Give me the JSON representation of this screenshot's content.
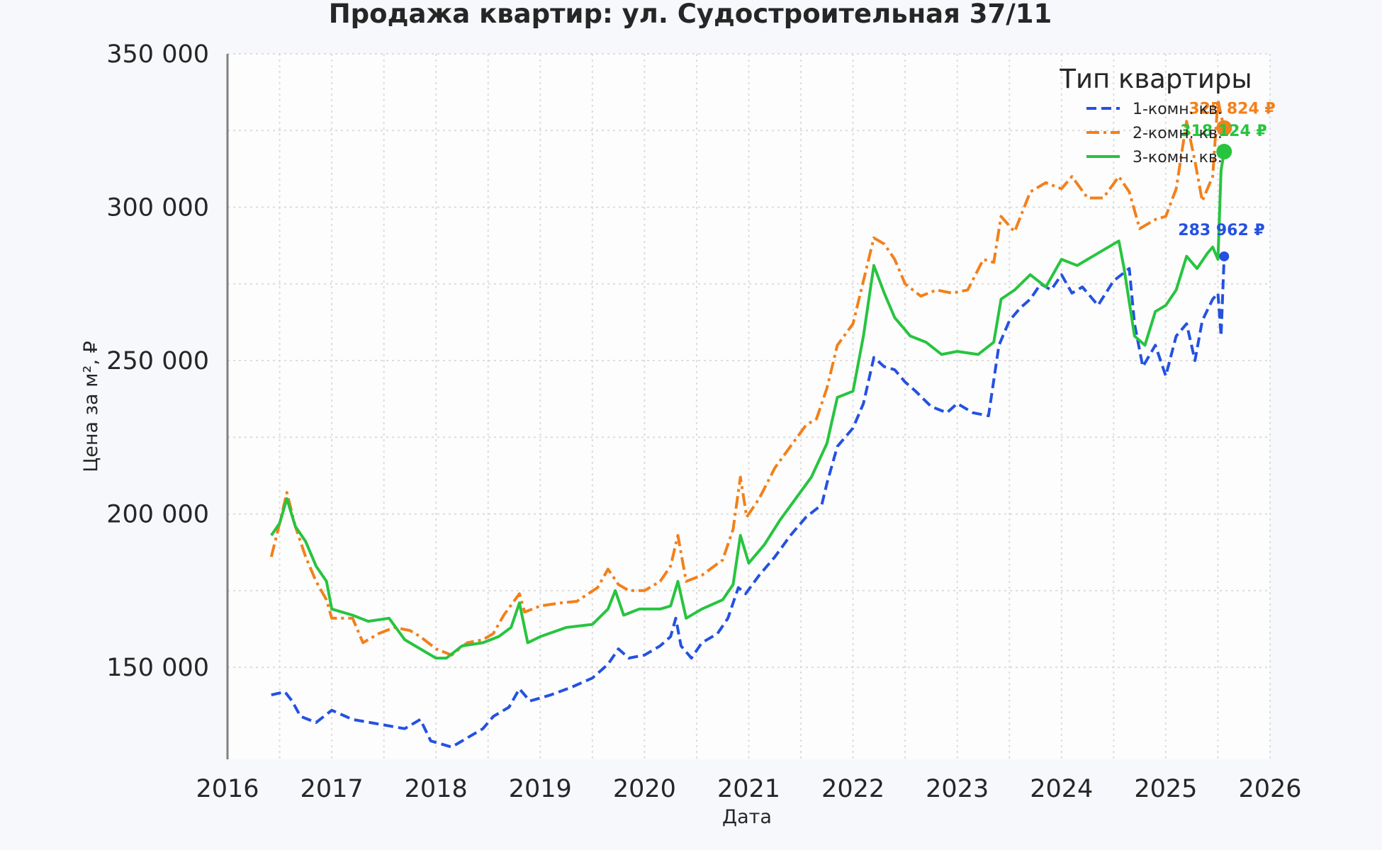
{
  "chart_data": {
    "type": "line",
    "title": "Продажа квартир: ул. Судостроительная 37/11",
    "xlabel": "Дата",
    "ylabel": "Цена за м², ₽",
    "xlim": [
      2016.0,
      2026.0
    ],
    "ylim": [
      120000,
      350000
    ],
    "x_ticks": [
      2016,
      2017,
      2018,
      2019,
      2020,
      2021,
      2022,
      2023,
      2024,
      2025,
      2026
    ],
    "y_ticks": [
      150000,
      200000,
      250000,
      300000,
      350000
    ],
    "x_tick_labels": [
      "2016",
      "2017",
      "2018",
      "2019",
      "2020",
      "2021",
      "2022",
      "2023",
      "2024",
      "2025",
      "2026"
    ],
    "y_tick_labels": [
      "150 000",
      "200 000",
      "250 000",
      "300 000",
      "350 000"
    ],
    "grid": true,
    "legend": {
      "title": "Тип квартиры",
      "position": "top-right"
    },
    "series": [
      {
        "name": "1-комн. кв.",
        "color": "#2451e0",
        "dash": "dashed",
        "end_label": "283 962 ₽",
        "end_value": 283962,
        "points": [
          [
            2016.42,
            141000
          ],
          [
            2016.55,
            142000
          ],
          [
            2016.62,
            139000
          ],
          [
            2016.7,
            134000
          ],
          [
            2016.85,
            132000
          ],
          [
            2017.0,
            136000
          ],
          [
            2017.2,
            133000
          ],
          [
            2017.45,
            131500
          ],
          [
            2017.7,
            130000
          ],
          [
            2017.85,
            133000
          ],
          [
            2017.95,
            126000
          ],
          [
            2018.05,
            125000
          ],
          [
            2018.15,
            124000
          ],
          [
            2018.3,
            127000
          ],
          [
            2018.45,
            130000
          ],
          [
            2018.55,
            134000
          ],
          [
            2018.7,
            137000
          ],
          [
            2018.8,
            143000
          ],
          [
            2018.9,
            139000
          ],
          [
            2019.1,
            141000
          ],
          [
            2019.3,
            143500
          ],
          [
            2019.5,
            146500
          ],
          [
            2019.65,
            151000
          ],
          [
            2019.75,
            156000
          ],
          [
            2019.85,
            153000
          ],
          [
            2020.0,
            154000
          ],
          [
            2020.15,
            157000
          ],
          [
            2020.25,
            160000
          ],
          [
            2020.3,
            166000
          ],
          [
            2020.35,
            157000
          ],
          [
            2020.45,
            153000
          ],
          [
            2020.55,
            158000
          ],
          [
            2020.7,
            161000
          ],
          [
            2020.8,
            166000
          ],
          [
            2020.9,
            176000
          ],
          [
            2020.97,
            174000
          ],
          [
            2021.1,
            180000
          ],
          [
            2021.25,
            186000
          ],
          [
            2021.4,
            193000
          ],
          [
            2021.55,
            199000
          ],
          [
            2021.7,
            203000
          ],
          [
            2021.75,
            210000
          ],
          [
            2021.85,
            222000
          ],
          [
            2022.0,
            228000
          ],
          [
            2022.1,
            236000
          ],
          [
            2022.2,
            251000
          ],
          [
            2022.3,
            248000
          ],
          [
            2022.4,
            247000
          ],
          [
            2022.5,
            243000
          ],
          [
            2022.6,
            240000
          ],
          [
            2022.75,
            235000
          ],
          [
            2022.9,
            233000
          ],
          [
            2023.0,
            236000
          ],
          [
            2023.15,
            233000
          ],
          [
            2023.3,
            232000
          ],
          [
            2023.4,
            255000
          ],
          [
            2023.5,
            263000
          ],
          [
            2023.6,
            267000
          ],
          [
            2023.7,
            270000
          ],
          [
            2023.8,
            275000
          ],
          [
            2023.9,
            273000
          ],
          [
            2024.0,
            278000
          ],
          [
            2024.1,
            272000
          ],
          [
            2024.2,
            274000
          ],
          [
            2024.35,
            268000
          ],
          [
            2024.5,
            276000
          ],
          [
            2024.65,
            280000
          ],
          [
            2024.7,
            262000
          ],
          [
            2024.78,
            248000
          ],
          [
            2024.9,
            255000
          ],
          [
            2025.0,
            245000
          ],
          [
            2025.1,
            258000
          ],
          [
            2025.2,
            262000
          ],
          [
            2025.28,
            250000
          ],
          [
            2025.35,
            263000
          ],
          [
            2025.45,
            270000
          ],
          [
            2025.5,
            272000
          ],
          [
            2025.53,
            258000
          ],
          [
            2025.56,
            283962
          ]
        ]
      },
      {
        "name": "2-комн. кв.",
        "color": "#f3801a",
        "dash": "dashdot",
        "end_label": "325 824 ₽",
        "end_value": 325824,
        "points": [
          [
            2016.42,
            186000
          ],
          [
            2016.5,
            197000
          ],
          [
            2016.57,
            207000
          ],
          [
            2016.65,
            196000
          ],
          [
            2016.75,
            186000
          ],
          [
            2016.85,
            178000
          ],
          [
            2016.95,
            172000
          ],
          [
            2017.0,
            166000
          ],
          [
            2017.2,
            166000
          ],
          [
            2017.3,
            158000
          ],
          [
            2017.45,
            161000
          ],
          [
            2017.6,
            163000
          ],
          [
            2017.75,
            162000
          ],
          [
            2017.85,
            160000
          ],
          [
            2018.0,
            156000
          ],
          [
            2018.15,
            154000
          ],
          [
            2018.3,
            158000
          ],
          [
            2018.45,
            159000
          ],
          [
            2018.55,
            161000
          ],
          [
            2018.65,
            167000
          ],
          [
            2018.8,
            174000
          ],
          [
            2018.85,
            168000
          ],
          [
            2019.0,
            170000
          ],
          [
            2019.2,
            171000
          ],
          [
            2019.35,
            171500
          ],
          [
            2019.55,
            176000
          ],
          [
            2019.65,
            182000
          ],
          [
            2019.75,
            177000
          ],
          [
            2019.85,
            175000
          ],
          [
            2020.0,
            175000
          ],
          [
            2020.15,
            178000
          ],
          [
            2020.25,
            183000
          ],
          [
            2020.32,
            193000
          ],
          [
            2020.4,
            178000
          ],
          [
            2020.55,
            180000
          ],
          [
            2020.75,
            185000
          ],
          [
            2020.85,
            195000
          ],
          [
            2020.92,
            212000
          ],
          [
            2020.98,
            199000
          ],
          [
            2021.1,
            205000
          ],
          [
            2021.25,
            215000
          ],
          [
            2021.4,
            222000
          ],
          [
            2021.55,
            229000
          ],
          [
            2021.65,
            231000
          ],
          [
            2021.75,
            241000
          ],
          [
            2021.85,
            255000
          ],
          [
            2022.0,
            262000
          ],
          [
            2022.1,
            276000
          ],
          [
            2022.2,
            290000
          ],
          [
            2022.3,
            288000
          ],
          [
            2022.4,
            283000
          ],
          [
            2022.5,
            275000
          ],
          [
            2022.65,
            271000
          ],
          [
            2022.8,
            273000
          ],
          [
            2022.95,
            272000
          ],
          [
            2023.1,
            273000
          ],
          [
            2023.25,
            283000
          ],
          [
            2023.35,
            282000
          ],
          [
            2023.42,
            297000
          ],
          [
            2023.55,
            292000
          ],
          [
            2023.7,
            305000
          ],
          [
            2023.85,
            308000
          ],
          [
            2024.0,
            306000
          ],
          [
            2024.1,
            310000
          ],
          [
            2024.25,
            303000
          ],
          [
            2024.4,
            303000
          ],
          [
            2024.55,
            310000
          ],
          [
            2024.65,
            305000
          ],
          [
            2024.75,
            293000
          ],
          [
            2024.9,
            296000
          ],
          [
            2025.0,
            297000
          ],
          [
            2025.1,
            306000
          ],
          [
            2025.2,
            328000
          ],
          [
            2025.28,
            315000
          ],
          [
            2025.35,
            302000
          ],
          [
            2025.45,
            310000
          ],
          [
            2025.5,
            335000
          ],
          [
            2025.53,
            330000
          ],
          [
            2025.56,
            325824
          ]
        ]
      },
      {
        "name": "3-комн. кв.",
        "color": "#27c43f",
        "dash": "solid",
        "end_label": "318 124 ₽",
        "end_value": 318124,
        "points": [
          [
            2016.42,
            193000
          ],
          [
            2016.5,
            197000
          ],
          [
            2016.57,
            205000
          ],
          [
            2016.65,
            196000
          ],
          [
            2016.75,
            191000
          ],
          [
            2016.85,
            183000
          ],
          [
            2016.95,
            178000
          ],
          [
            2017.0,
            169000
          ],
          [
            2017.2,
            167000
          ],
          [
            2017.35,
            165000
          ],
          [
            2017.55,
            166000
          ],
          [
            2017.7,
            159000
          ],
          [
            2017.85,
            156000
          ],
          [
            2018.0,
            153000
          ],
          [
            2018.1,
            153000
          ],
          [
            2018.25,
            157000
          ],
          [
            2018.45,
            158000
          ],
          [
            2018.6,
            160000
          ],
          [
            2018.72,
            163000
          ],
          [
            2018.8,
            171000
          ],
          [
            2018.88,
            158000
          ],
          [
            2019.0,
            160000
          ],
          [
            2019.25,
            163000
          ],
          [
            2019.5,
            164000
          ],
          [
            2019.65,
            169000
          ],
          [
            2019.72,
            175000
          ],
          [
            2019.8,
            167000
          ],
          [
            2019.95,
            169000
          ],
          [
            2020.15,
            169000
          ],
          [
            2020.25,
            170000
          ],
          [
            2020.32,
            178000
          ],
          [
            2020.4,
            166000
          ],
          [
            2020.55,
            169000
          ],
          [
            2020.75,
            172000
          ],
          [
            2020.85,
            177000
          ],
          [
            2020.92,
            193000
          ],
          [
            2021.0,
            184000
          ],
          [
            2021.15,
            190000
          ],
          [
            2021.3,
            198000
          ],
          [
            2021.45,
            205000
          ],
          [
            2021.6,
            212000
          ],
          [
            2021.75,
            223000
          ],
          [
            2021.85,
            238000
          ],
          [
            2022.0,
            240000
          ],
          [
            2022.1,
            258000
          ],
          [
            2022.2,
            281000
          ],
          [
            2022.3,
            272000
          ],
          [
            2022.4,
            264000
          ],
          [
            2022.55,
            258000
          ],
          [
            2022.7,
            256000
          ],
          [
            2022.85,
            252000
          ],
          [
            2023.0,
            253000
          ],
          [
            2023.2,
            252000
          ],
          [
            2023.35,
            256000
          ],
          [
            2023.42,
            270000
          ],
          [
            2023.55,
            273000
          ],
          [
            2023.7,
            278000
          ],
          [
            2023.85,
            274000
          ],
          [
            2024.0,
            283000
          ],
          [
            2024.15,
            281000
          ],
          [
            2024.3,
            284000
          ],
          [
            2024.45,
            287000
          ],
          [
            2024.55,
            289000
          ],
          [
            2024.6,
            280000
          ],
          [
            2024.7,
            258000
          ],
          [
            2024.8,
            255000
          ],
          [
            2024.9,
            266000
          ],
          [
            2025.0,
            268000
          ],
          [
            2025.1,
            273000
          ],
          [
            2025.2,
            284000
          ],
          [
            2025.3,
            280000
          ],
          [
            2025.4,
            285000
          ],
          [
            2025.45,
            287000
          ],
          [
            2025.5,
            283000
          ],
          [
            2025.53,
            312000
          ],
          [
            2025.56,
            318124
          ]
        ]
      }
    ]
  }
}
